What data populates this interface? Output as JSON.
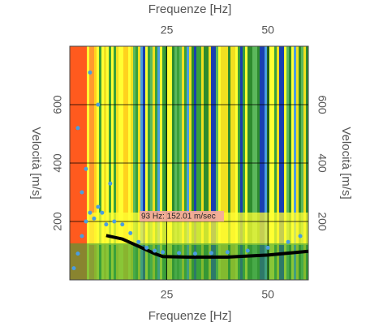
{
  "chart_data": {
    "type": "line",
    "x_label": "Frequenze [Hz]",
    "y_label": "Velocità [m/s]",
    "xlim": [
      1,
      60
    ],
    "ylim": [
      0,
      800
    ],
    "xticks": [
      25,
      50
    ],
    "yticks": [
      200,
      400,
      600
    ],
    "grid": true,
    "annotation": "93 Hz: 152.01 m/sec",
    "series": [
      {
        "color": "#000000",
        "x": [
          10,
          14,
          18,
          22,
          24,
          30,
          40,
          50,
          60
        ],
        "values": [
          152,
          140,
          115,
          90,
          80,
          78,
          78,
          85,
          98
        ]
      },
      {
        "type": "scatter",
        "color": "#4a9de0",
        "x": [
          2,
          3,
          4,
          5,
          6,
          7,
          8,
          9,
          10,
          12,
          14,
          16,
          18,
          20,
          22,
          24,
          28,
          32,
          36,
          40,
          45,
          50,
          55,
          58,
          3,
          5,
          8,
          11,
          4,
          6
        ],
        "values": [
          40,
          90,
          150,
          200,
          230,
          210,
          250,
          230,
          190,
          200,
          190,
          160,
          130,
          110,
          100,
          95,
          92,
          90,
          92,
          95,
          100,
          110,
          130,
          150,
          520,
          380,
          600,
          330,
          300,
          710
        ]
      }
    ]
  }
}
